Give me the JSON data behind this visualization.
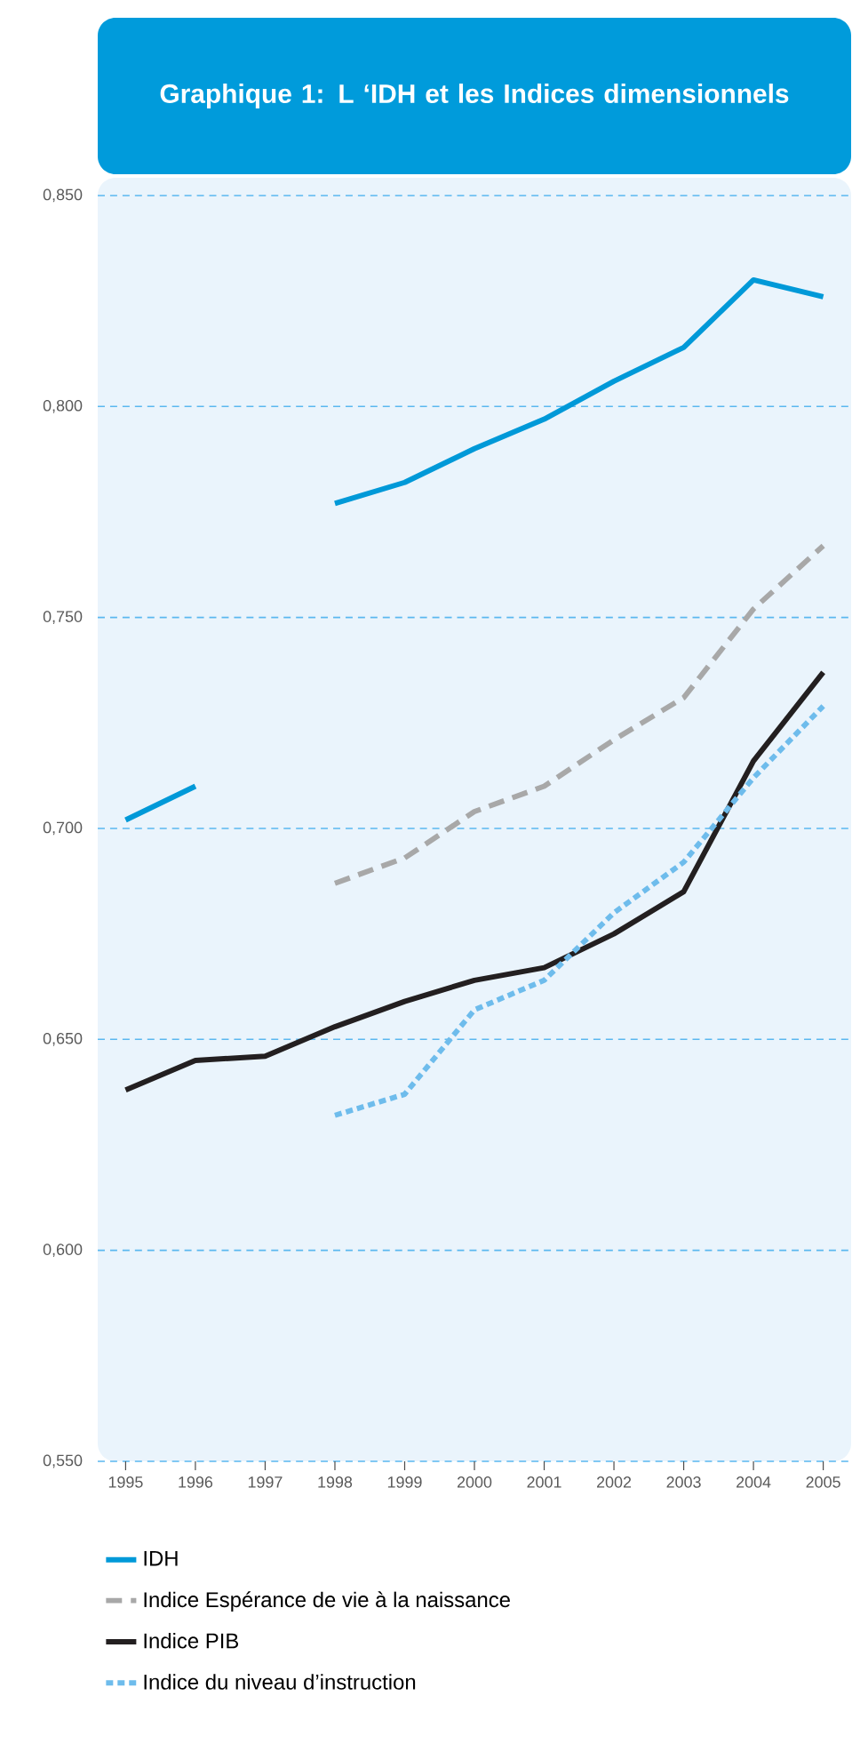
{
  "chart_data": {
    "type": "line",
    "title": "Graphique 1: L ‘IDH et les Indices dimensionnels",
    "x": [
      1995,
      1996,
      1997,
      1998,
      1999,
      2000,
      2001,
      2002,
      2003,
      2004,
      2005
    ],
    "series": [
      {
        "name": "IDH",
        "color": "#0099d8",
        "line_style": "solid",
        "values": [
          0.702,
          0.71,
          null,
          0.777,
          0.782,
          0.79,
          0.797,
          0.806,
          0.814,
          0.83,
          0.826
        ]
      },
      {
        "name": "Indice Espérance de vie à la naissance",
        "color": "#a8a8a8",
        "line_style": "dashed",
        "values": [
          null,
          null,
          null,
          0.687,
          0.693,
          0.704,
          0.71,
          0.721,
          0.731,
          0.752,
          0.767
        ]
      },
      {
        "name": "Indice PIB",
        "color": "#231f20",
        "line_style": "solid",
        "values": [
          0.638,
          0.645,
          0.646,
          0.653,
          0.659,
          0.664,
          0.667,
          0.675,
          0.685,
          0.716,
          0.737
        ]
      },
      {
        "name": "Indice du niveau d’instruction",
        "color": "#6ebcec",
        "line_style": "dotted",
        "values": [
          null,
          null,
          null,
          0.632,
          0.637,
          0.657,
          0.664,
          0.68,
          0.692,
          0.712,
          0.729
        ]
      }
    ],
    "xlim": [
      1994.6,
      2005.4
    ],
    "xticks": [
      1995,
      1996,
      1997,
      1998,
      1999,
      2000,
      2001,
      2002,
      2003,
      2004,
      2005
    ],
    "ylim": [
      0.55,
      0.85
    ],
    "yticks": [
      {
        "value": 0.55,
        "label": "0,550"
      },
      {
        "value": 0.6,
        "label": "0,600"
      },
      {
        "value": 0.65,
        "label": "0,650"
      },
      {
        "value": 0.7,
        "label": "0,700"
      },
      {
        "value": 0.75,
        "label": "0,750"
      },
      {
        "value": 0.8,
        "label": "0,800"
      },
      {
        "value": 0.85,
        "label": "0,850"
      }
    ],
    "grid": "y",
    "legend": "bottom",
    "marker": "none"
  }
}
